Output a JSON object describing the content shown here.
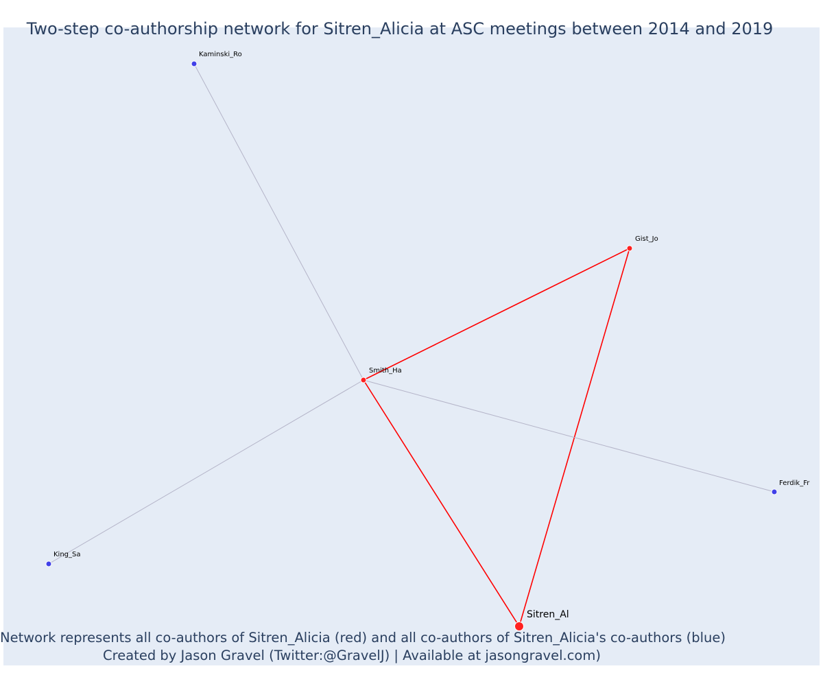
{
  "title": "Two-step co-authorship network for Sitren_Alicia at ASC meetings between 2014 and 2019",
  "caption": {
    "line1": "Network represents all co-authors of Sitren_Alicia (red) and all co-authors of Sitren_Alicia's co-authors (blue)",
    "line2": "Created by Jason Gravel (Twitter:@GravelJ) | Available at jasongravel.com)"
  },
  "colors": {
    "plot_background": "#e5ecf6",
    "direct_coauthor": "#ff2020",
    "second_step_coauthor": "#4040e8",
    "direct_edge": "#ff0000",
    "second_step_edge": "#b4b4c8",
    "text": "#2a3f5f"
  },
  "network": {
    "nodes": [
      {
        "id": "Sitren_Al",
        "label": "Sitren_Al",
        "group": "focal"
      },
      {
        "id": "Smith_Ha",
        "label": "Smith_Ha",
        "group": "direct"
      },
      {
        "id": "Gist_Jo",
        "label": "Gist_Jo",
        "group": "direct"
      },
      {
        "id": "Kaminski_Ro",
        "label": "Kaminski_Ro",
        "group": "second"
      },
      {
        "id": "King_Sa",
        "label": "King_Sa",
        "group": "second"
      },
      {
        "id": "Ferdik_Fr",
        "label": "Ferdik_Fr",
        "group": "second"
      }
    ],
    "edges": [
      {
        "source": "Sitren_Al",
        "target": "Smith_Ha",
        "type": "direct"
      },
      {
        "source": "Sitren_Al",
        "target": "Gist_Jo",
        "type": "direct"
      },
      {
        "source": "Smith_Ha",
        "target": "Gist_Jo",
        "type": "direct"
      },
      {
        "source": "Smith_Ha",
        "target": "Kaminski_Ro",
        "type": "second"
      },
      {
        "source": "Smith_Ha",
        "target": "King_Sa",
        "type": "second"
      },
      {
        "source": "Smith_Ha",
        "target": "Ferdik_Fr",
        "type": "second"
      }
    ]
  }
}
